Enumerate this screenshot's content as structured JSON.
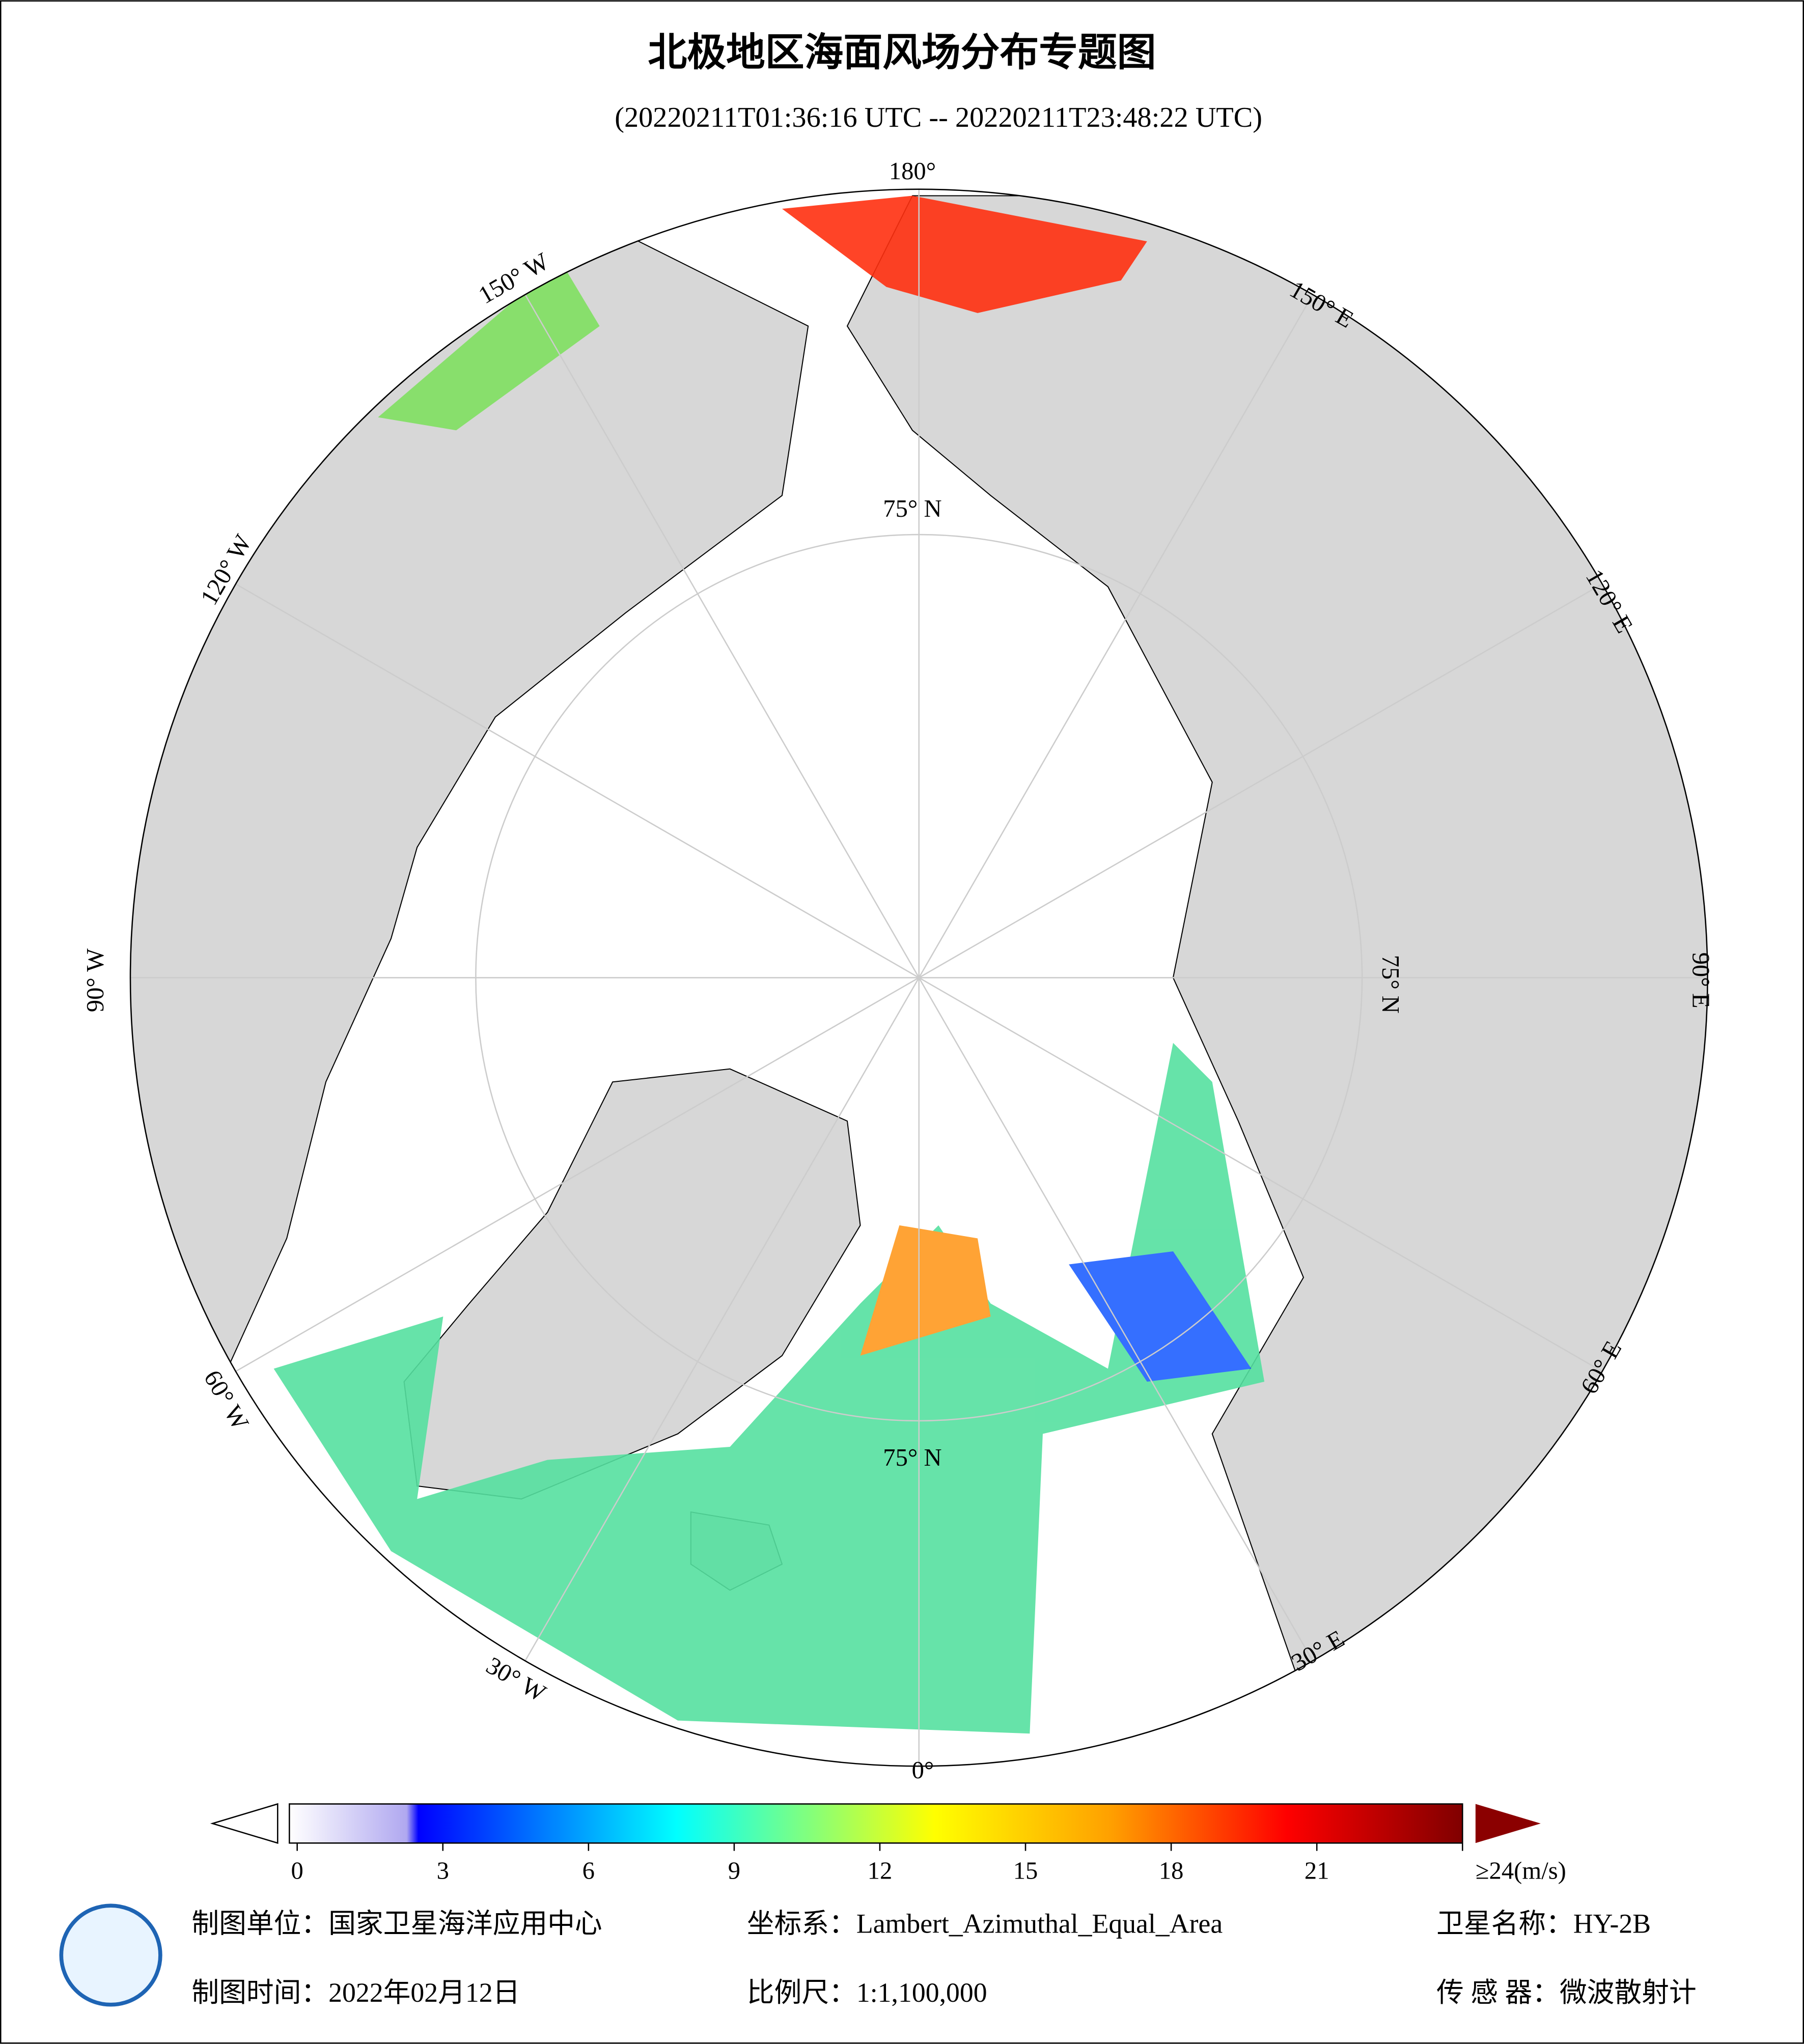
{
  "header": {
    "title": "北极地区海面风场分布专题图",
    "subtitle": "(20220211T01:36:16 UTC -- 20220211T23:48:22 UTC)"
  },
  "map": {
    "labels": [
      "180°",
      "150° W",
      "120° W",
      "90° W",
      "60° W",
      "30° W",
      "0°",
      "30° E",
      "60° E",
      "90° E",
      "120° E",
      "150° E",
      "75° N",
      "75° N",
      "75° N"
    ]
  },
  "colorbar": {
    "lim": [
      0,
      24
    ],
    "ticks": [
      0,
      3,
      6,
      9,
      12,
      15,
      18,
      21,
      {
        "value": 24,
        "label": "≥24(m/s)"
      }
    ]
  },
  "footer": {
    "unit": "制图单位：国家卫星海洋应用中心",
    "crs": "坐标系：Lambert_Azimuthal_Equal_Area",
    "satellite": "卫星名称：HY-2B",
    "date": "制图时间：2022年02月12日",
    "scale": "比例尺：1:1,100,000",
    "sensor": "传 感 器：微波散射计"
  }
}
